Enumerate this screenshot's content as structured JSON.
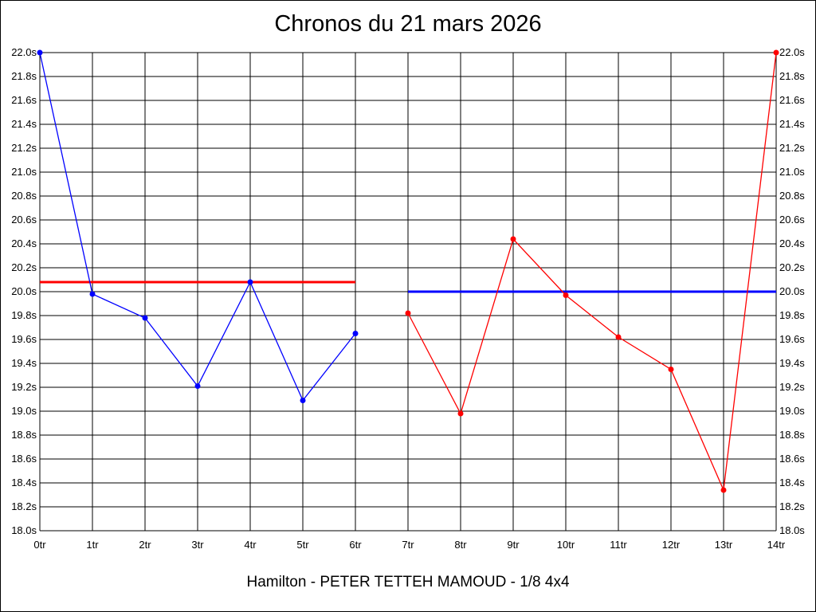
{
  "chart_data": {
    "type": "line",
    "title": "Chronos du 21 mars 2026",
    "subtitle": "Hamilton - PETER TETTEH MAMOUD - 1/8 4x4",
    "x_categories": [
      "0tr",
      "1tr",
      "2tr",
      "3tr",
      "4tr",
      "5tr",
      "6tr",
      "7tr",
      "8tr",
      "9tr",
      "10tr",
      "11tr",
      "12tr",
      "13tr",
      "14tr"
    ],
    "y_ticks": [
      "18.0s",
      "18.2s",
      "18.4s",
      "18.6s",
      "18.8s",
      "19.0s",
      "19.2s",
      "19.4s",
      "19.6s",
      "19.8s",
      "20.0s",
      "20.2s",
      "20.4s",
      "20.6s",
      "20.8s",
      "21.0s",
      "21.2s",
      "21.4s",
      "21.6s",
      "21.8s",
      "22.0s"
    ],
    "ylim": [
      18.0,
      22.0
    ],
    "grid": true,
    "series": [
      {
        "color": "#0000ff",
        "points": [
          {
            "x": 0,
            "y": 22.0
          },
          {
            "x": 1,
            "y": 19.98
          },
          {
            "x": 2,
            "y": 19.78
          },
          {
            "x": 3,
            "y": 19.21
          },
          {
            "x": 4,
            "y": 20.08
          },
          {
            "x": 5,
            "y": 19.09
          },
          {
            "x": 6,
            "y": 19.65
          }
        ]
      },
      {
        "color": "#ff0000",
        "points": [
          {
            "x": 7,
            "y": 19.82
          },
          {
            "x": 8,
            "y": 18.98
          },
          {
            "x": 9,
            "y": 20.44
          },
          {
            "x": 10,
            "y": 19.97
          },
          {
            "x": 11,
            "y": 19.62
          },
          {
            "x": 12,
            "y": 19.35
          },
          {
            "x": 13,
            "y": 18.34
          },
          {
            "x": 14,
            "y": 22.0
          }
        ]
      }
    ],
    "reference_lines": [
      {
        "color": "#ff0000",
        "y": 20.08,
        "x_from": 0,
        "x_to": 6
      },
      {
        "color": "#0000ff",
        "y": 20.0,
        "x_from": 7,
        "x_to": 14
      }
    ]
  }
}
